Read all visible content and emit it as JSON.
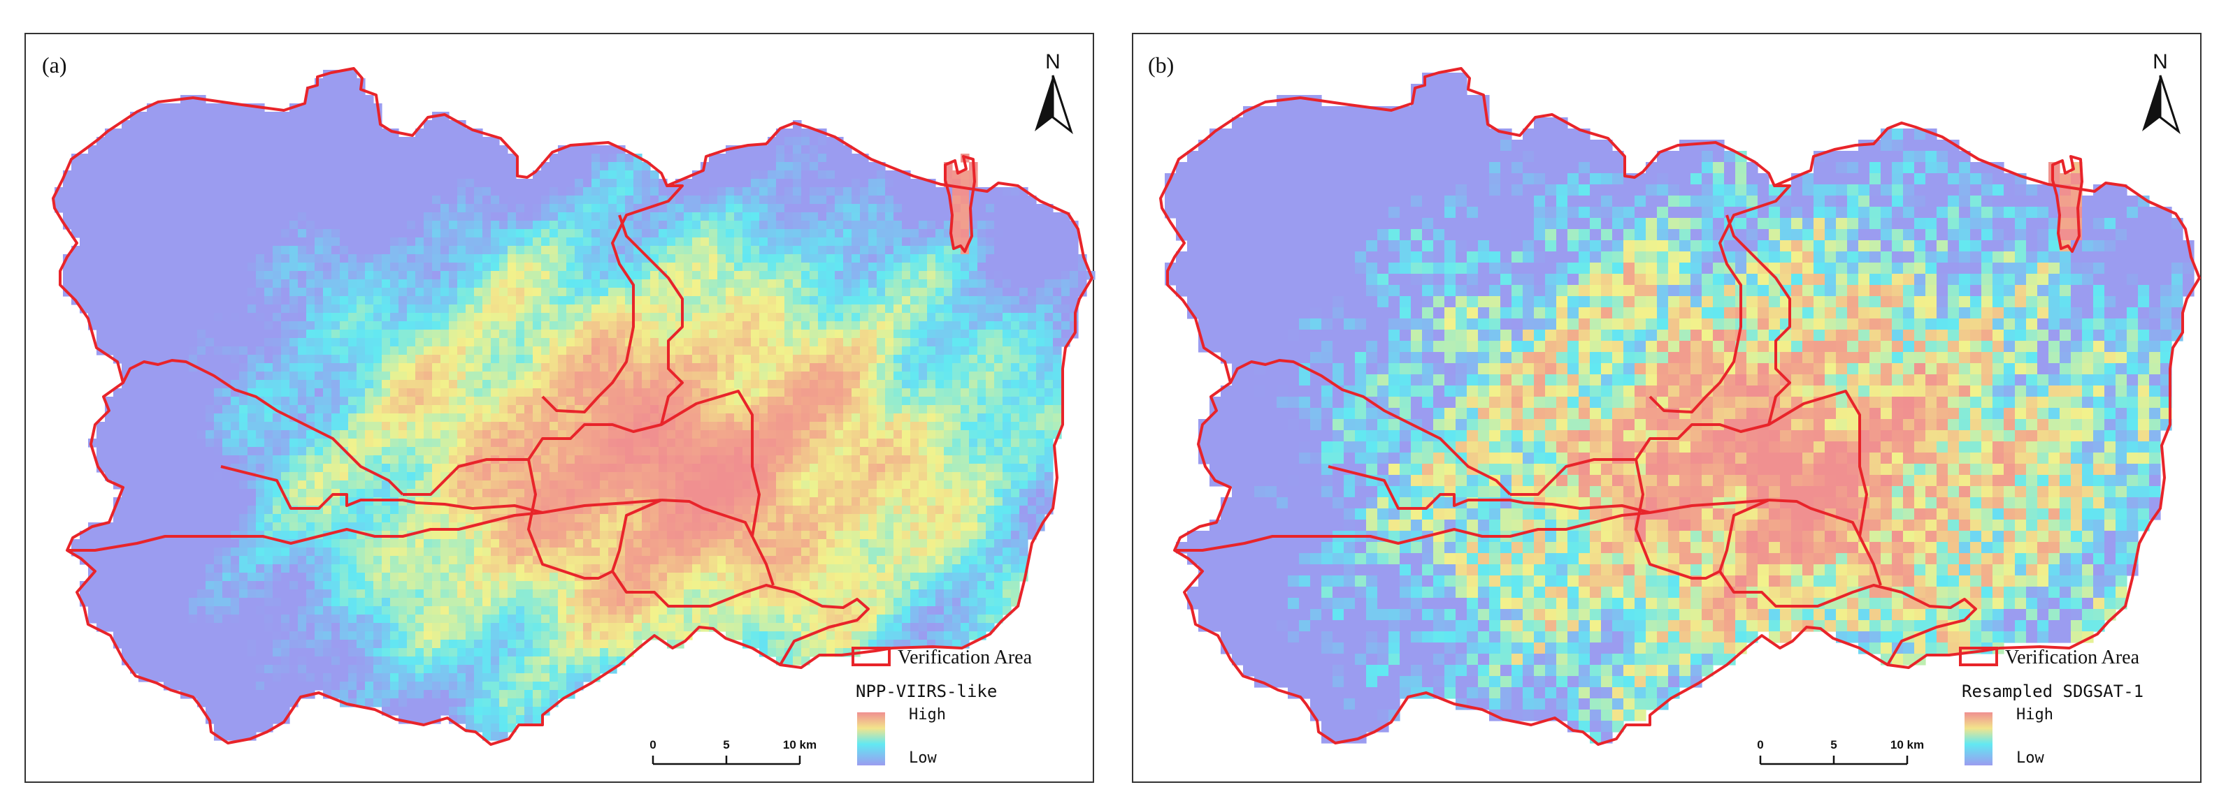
{
  "panels": [
    {
      "label": "(a)",
      "north": "N",
      "legend_boundary": "Verification Area",
      "legend_title": "NPP-VIIRS-like",
      "legend_high": "High",
      "legend_low": "Low",
      "scale_ticks": [
        "0",
        "5",
        "10 km"
      ],
      "noise": 0.18,
      "smooth": true
    },
    {
      "label": "(b)",
      "north": "N",
      "legend_boundary": "Verification Area",
      "legend_title": "Resampled SDGSAT-1",
      "legend_high": "High",
      "legend_low": "Low",
      "scale_ticks": [
        "0",
        "5",
        "10 km"
      ],
      "noise": 0.55,
      "smooth": false
    }
  ],
  "colors": {
    "boundary": "#e8242a",
    "ramp": [
      "#9b9cf0",
      "#62e8f2",
      "#f2f28c",
      "#f2a88c",
      "#f09090"
    ]
  }
}
